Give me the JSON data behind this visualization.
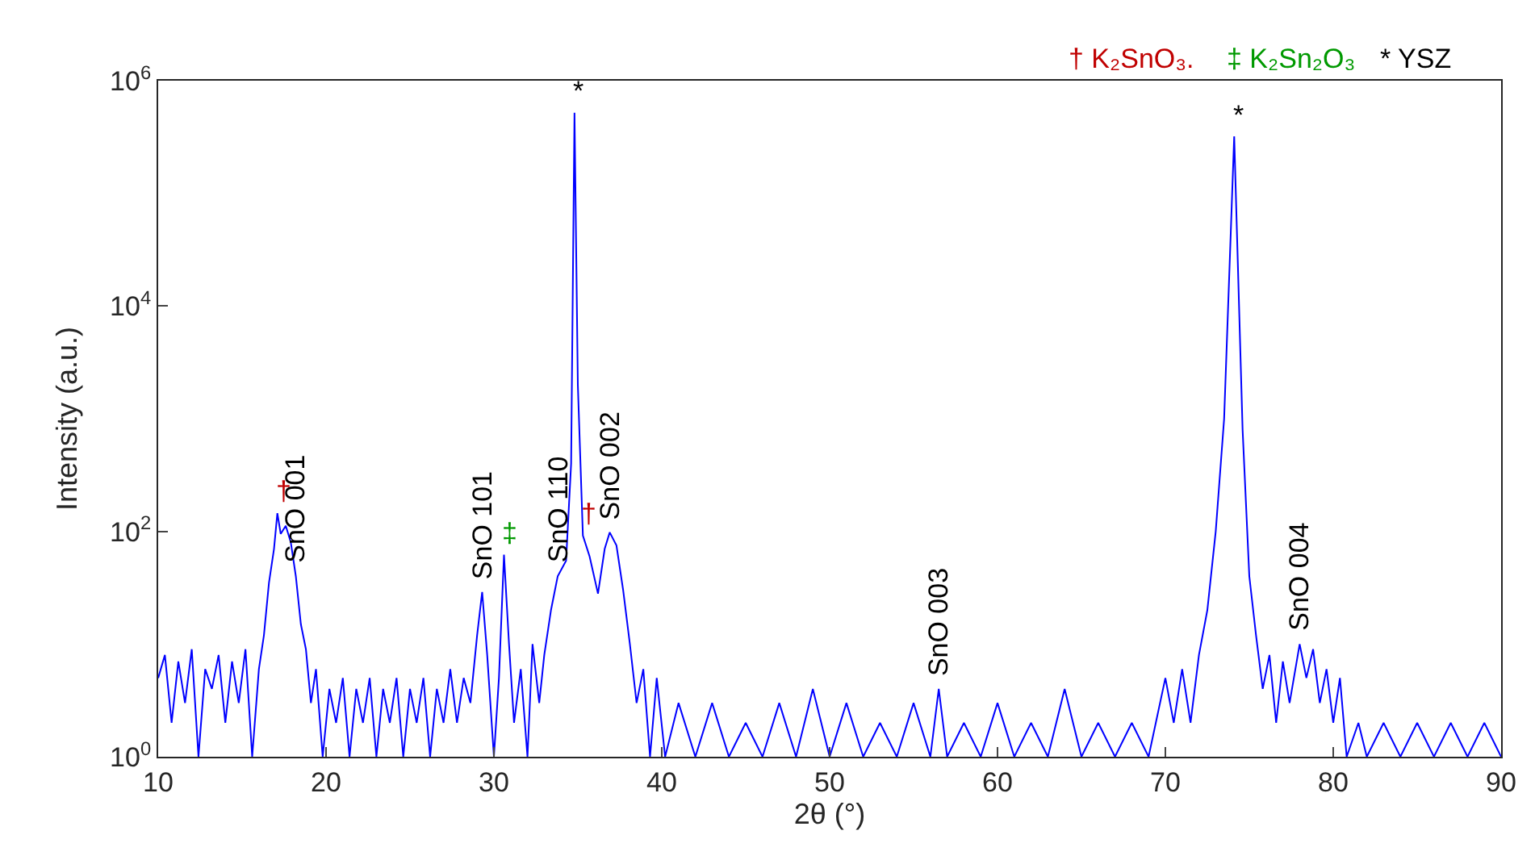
{
  "chart_data": {
    "type": "line",
    "xlabel": "2θ (°)",
    "ylabel": "Intensity (a.u.)",
    "log": "y",
    "xlim": [
      10,
      90
    ],
    "xticks": [
      10,
      20,
      30,
      40,
      50,
      60,
      70,
      80,
      90
    ],
    "ylim": [
      1,
      1000000
    ],
    "yticks": [
      {
        "value": 1,
        "label": "10$^{0}$"
      },
      {
        "value": 100,
        "label": "10$^{2}$"
      },
      {
        "value": 10000,
        "label": "10$^{4}$"
      },
      {
        "value": 1000000,
        "label": "10$^{6}$"
      }
    ],
    "legend": false,
    "marker": "none",
    "line_style": "solid",
    "x": [
      10,
      10.4,
      10.8,
      11.2,
      11.6,
      12,
      12.4,
      12.8,
      13.2,
      13.6,
      14,
      14.4,
      14.8,
      15.2,
      15.6,
      16,
      16.3,
      16.6,
      16.9,
      17.1,
      17.3,
      17.6,
      17.9,
      18.2,
      18.5,
      18.8,
      19.1,
      19.4,
      19.8,
      20.2,
      20.6,
      21,
      21.4,
      21.8,
      22.2,
      22.6,
      23,
      23.4,
      23.8,
      24.2,
      24.6,
      25,
      25.4,
      25.8,
      26.2,
      26.6,
      27,
      27.4,
      27.8,
      28.2,
      28.6,
      29,
      29.3,
      29.6,
      30,
      30.3,
      30.6,
      30.9,
      31.2,
      31.6,
      32,
      32.3,
      32.7,
      33,
      33.4,
      33.8,
      34.3,
      34.6,
      34.8,
      35.0,
      35.3,
      35.7,
      36.2,
      36.6,
      36.9,
      37.3,
      37.7,
      38.1,
      38.5,
      38.9,
      39.3,
      39.7,
      40.2,
      41,
      42,
      43,
      44,
      45,
      46,
      47,
      48,
      49,
      50,
      51,
      52,
      53,
      54,
      55,
      56,
      56.5,
      57,
      58,
      59,
      60,
      61,
      62,
      63,
      64,
      65,
      66,
      67,
      68,
      69,
      70,
      70.5,
      71,
      71.5,
      72,
      72.5,
      73,
      73.5,
      74.1,
      74.6,
      75,
      75.4,
      75.8,
      76.2,
      76.6,
      77,
      77.4,
      78,
      78.4,
      78.8,
      79.2,
      79.6,
      80,
      80.4,
      80.8,
      81.5,
      82,
      83,
      84,
      85,
      86,
      87,
      88,
      89,
      90
    ],
    "series": [
      {
        "color": "#0000ff",
        "values": [
          5,
          8,
          2,
          7,
          3,
          9,
          1,
          6,
          4,
          8,
          2,
          7,
          3,
          9,
          1,
          6,
          12,
          35,
          70,
          145,
          95,
          112,
          80,
          40,
          15,
          9,
          3,
          6,
          1,
          4,
          2,
          5,
          1,
          4,
          2,
          5,
          1,
          4,
          2,
          5,
          1,
          4,
          2,
          5,
          1,
          4,
          2,
          6,
          2,
          5,
          3,
          12,
          29,
          8,
          1,
          5,
          62,
          10,
          2,
          6,
          1,
          10,
          3,
          8,
          20,
          40,
          55,
          400,
          520000,
          2000,
          92,
          60,
          28,
          70,
          98,
          75,
          30,
          10,
          3,
          6,
          1,
          5,
          1,
          3,
          1,
          3,
          1,
          2,
          1,
          3,
          1,
          4,
          1,
          3,
          1,
          2,
          1,
          3,
          1,
          4,
          1,
          2,
          1,
          3,
          1,
          2,
          1,
          4,
          1,
          2,
          1,
          2,
          1,
          5,
          2,
          6,
          2,
          8,
          20,
          100,
          1000,
          320000,
          800,
          40,
          12,
          4,
          8,
          2,
          7,
          3,
          10,
          5,
          9,
          3,
          6,
          2,
          5,
          1,
          2,
          1,
          2,
          1,
          2,
          1,
          2,
          1,
          2,
          1
        ]
      }
    ],
    "annotations": [
      {
        "text": "SnO 001",
        "x": 18.2,
        "y": 40
      },
      {
        "text": "SnO 101",
        "x": 29.3,
        "y": 29
      },
      {
        "text": "SnO 110",
        "x": 33.8,
        "y": 40
      },
      {
        "text": "SnO 002",
        "x": 36.9,
        "y": 98
      },
      {
        "text": "SnO 003",
        "x": 56.5,
        "y": 4
      },
      {
        "text": "SnO 004",
        "x": 78,
        "y": 10
      },
      {
        "text": "†",
        "x": 17.1,
        "y": 145
      },
      {
        "text": "‡",
        "x": 30.6,
        "y": 62
      },
      {
        "text": "†",
        "x": 35.3,
        "y": 92
      },
      {
        "text": "*",
        "x": 34.8,
        "y": 520000
      },
      {
        "text": "*",
        "x": 74.1,
        "y": 320000
      },
      "† K₂SnO₃.",
      "‡ K₂Sn₂O₃",
      "* YSZ"
    ]
  }
}
